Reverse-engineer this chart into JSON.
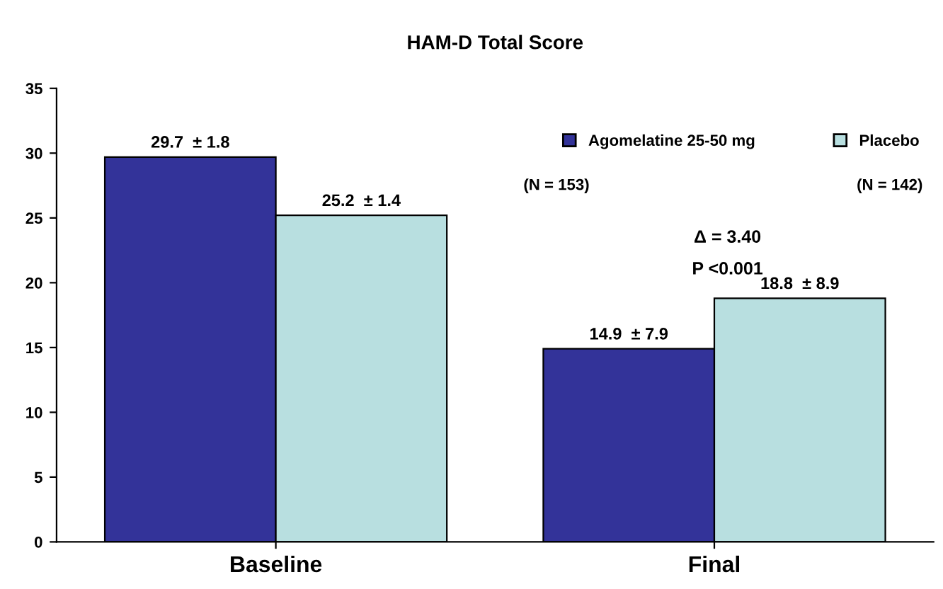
{
  "chart_data": {
    "type": "bar",
    "title": "HAM-D Total Score",
    "categories": [
      "Baseline",
      "Final"
    ],
    "series": [
      {
        "name": "Agomelatine 25-50 mg",
        "color": "#333399",
        "values": [
          29.7,
          14.9
        ],
        "value_labels": [
          "29.7  ± 1.8",
          "14.9  ± 7.9"
        ]
      },
      {
        "name": "Placebo",
        "color": "#b8dfe0",
        "values": [
          25.2,
          18.8
        ],
        "value_labels": [
          "25.2  ± 1.4",
          "18.8  ± 8.9"
        ]
      }
    ],
    "ylim": [
      0,
      35
    ],
    "yticks": [
      0,
      5,
      10,
      15,
      20,
      25,
      30,
      35
    ],
    "grid": false,
    "legend": "top right",
    "annotations": [
      "(N = 153)",
      "(N = 142)",
      "Δ = 3.40",
      "P <0.001"
    ]
  }
}
